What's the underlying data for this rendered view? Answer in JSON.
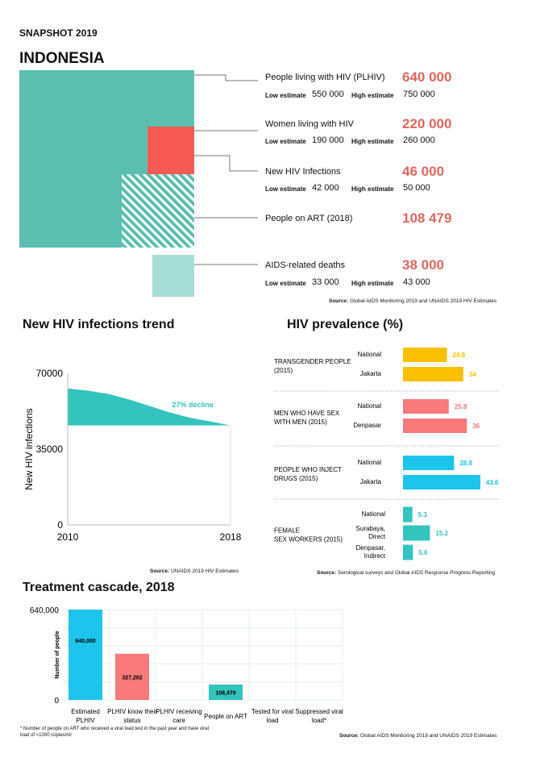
{
  "header": {
    "snapshot": "SNAPSHOT 2019",
    "country": "INDONESIA"
  },
  "key_figures": [
    {
      "label": "People living with HIV (PLHIV)",
      "value": "640 000",
      "low_label": "Low estimate",
      "low": "550 000",
      "high_label": "High estimate",
      "high": "750 000"
    },
    {
      "label": "Women living with HIV",
      "value": "220 000",
      "low_label": "Low estimate",
      "low": "190 000",
      "high_label": "High estimate",
      "high": "260 000"
    },
    {
      "label": "New HIV Infections",
      "value": "46 000",
      "low_label": "Low estimate",
      "low": "42 000",
      "high_label": "High estimate",
      "high": "50 000"
    },
    {
      "label": "People on ART (2018)",
      "value": "108 479"
    },
    {
      "label": "AIDS-related deaths",
      "value": "38 000",
      "low_label": "Low estimate",
      "low": "33 000",
      "high_label": "High estimate",
      "high": "43 000"
    }
  ],
  "key_source": {
    "prefix": "Source:",
    "text": " Global AIDS Monitoring 2019 and UNAIDS 2019 HIV Estimates"
  },
  "colors": {
    "teal": "#5bbfb0",
    "red": "#f55a55",
    "light_teal": "#a6dcd6",
    "accent_text": "#e0665d",
    "yellow": "#f9c000",
    "pink": "#f87a7a",
    "cyan": "#1dc4ec",
    "green": "#33c4c0"
  },
  "chart_data": [
    {
      "type": "area",
      "title": "New HIV infections trend",
      "ylabel": "New HIV infections",
      "xlabel": "",
      "x": [
        2010,
        2011,
        2012,
        2013,
        2014,
        2015,
        2016,
        2017,
        2018
      ],
      "y": [
        63000,
        62000,
        60500,
        58000,
        55000,
        52000,
        49500,
        47800,
        46000
      ],
      "baseline": 46000,
      "xlim": [
        2010,
        2018
      ],
      "ylim": [
        0,
        70000
      ],
      "yticks": [
        "70000",
        "35000",
        "0"
      ],
      "xticks": [
        "2010",
        "2018"
      ],
      "annotation": "27% decline",
      "source": {
        "prefix": "Source:",
        "text": " UNAIDS 2019 HIV Estimates"
      }
    },
    {
      "type": "bar",
      "title": "HIV prevalence (%)",
      "orientation": "horizontal",
      "groups": [
        {
          "name": "TRANSGENDER PEOPLE (2015)",
          "color": "#f9c000",
          "bars": [
            {
              "label": "National",
              "value": 24.8
            },
            {
              "label": "Jakarta",
              "value": 34
            }
          ]
        },
        {
          "name": "MEN WHO HAVE SEX WITH MEN (2015)",
          "color": "#f87a7a",
          "bars": [
            {
              "label": "National",
              "value": 25.8
            },
            {
              "label": "Denpasar",
              "value": 36
            }
          ]
        },
        {
          "name": "PEOPLE WHO INJECT DRUGS (2015)",
          "color": "#1dc4ec",
          "bars": [
            {
              "label": "National",
              "value": 28.8
            },
            {
              "label": "Jakarta",
              "value": 43.6
            }
          ]
        },
        {
          "name": "FEMALE SEX WORKERS (2015)",
          "color": "#33c4c0",
          "bars": [
            {
              "label": "National",
              "value": 5.3
            },
            {
              "label": "Surabaya, Direct",
              "value": 15.2
            },
            {
              "label": "Denpasar, Indirect",
              "value": 5.6
            }
          ]
        }
      ],
      "source": {
        "prefix": "Source:",
        "text": " Serological surveys and Global AIDS Response Progress Reporting"
      }
    },
    {
      "type": "bar",
      "title": "Treatment cascade, 2018",
      "ylabel": "Number of people",
      "ylim": [
        0,
        640000
      ],
      "yticks": [
        "640,000",
        "0"
      ],
      "categories": [
        "Estimated PLHIV",
        "PLHIV know their status",
        "PLHIV receiving care",
        "People on ART",
        "Tested for viral load",
        "Suppressed viral load*"
      ],
      "values": [
        640000,
        327282,
        null,
        108479,
        null,
        null
      ],
      "data_labels": [
        "640,000",
        "327,282",
        "",
        "108,479",
        "",
        ""
      ],
      "bar_colors": [
        "#1dc4ec",
        "#f87a7a",
        "",
        "#33c4c0",
        "",
        ""
      ],
      "grid": true,
      "footnote": "* Number of people on ART who received a viral load test in the past year and have viral load of <1000 copies/ml",
      "source": {
        "prefix": "Source:",
        "text": " Global AIDS Monitoring 2019 and UNAIDS 2019 Estimates"
      }
    }
  ]
}
